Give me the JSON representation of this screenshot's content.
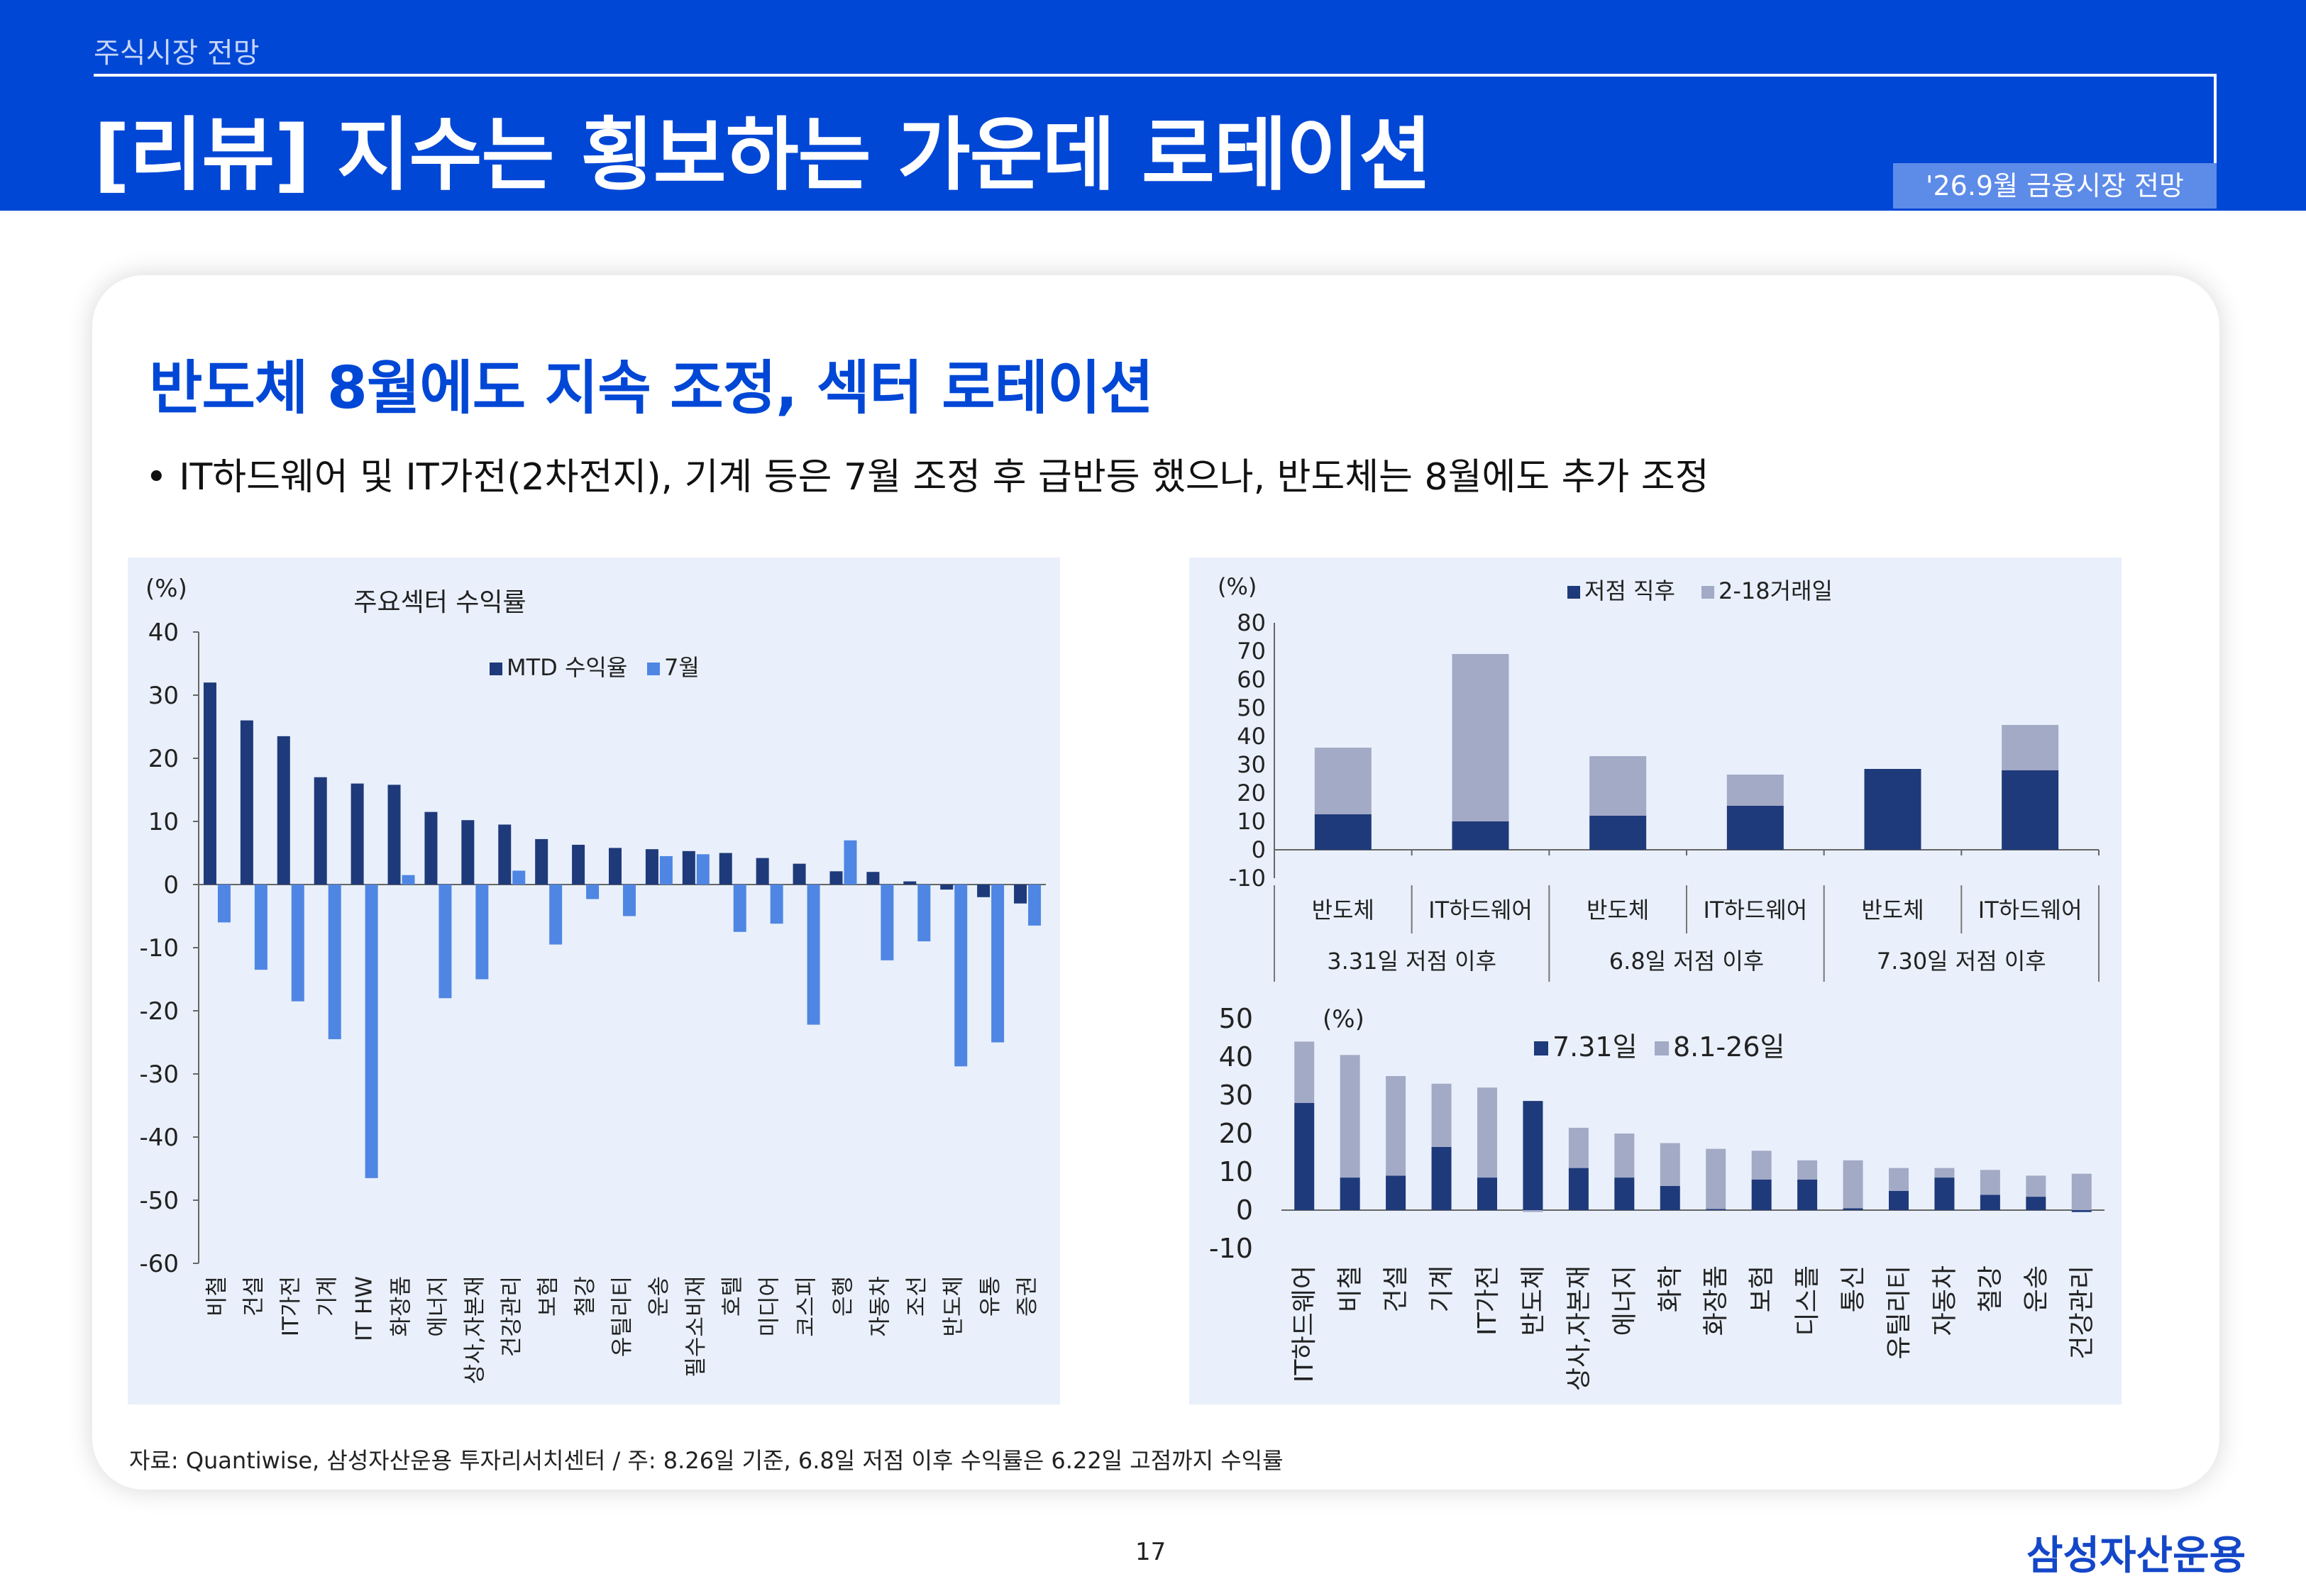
{
  "header": {
    "section": "주식시장 전망",
    "title": "[리뷰] 지수는 횡보하는 가운데 로테이션",
    "issue": "'26.9월 금융시장 전망"
  },
  "content": {
    "subtitle": "반도체 8월에도 지속 조정, 섹터 로테이션",
    "bullet": "• IT하드웨어 및 IT가전(2차전지), 기계 등은 7월 조정 후 급반등 했으나, 반도체는 8월에도 추가 조정"
  },
  "footer": {
    "source": "자료: Quantiwise, 삼성자산운용 투자리서치센터 / 주: 8.26일 기준, 6.8일 저점 이후 수익률은 6.22일 고점까지 수익률",
    "page": "17",
    "logo": "삼성자산운용"
  },
  "colors": {
    "brand": "#0047d6",
    "dark_series": "#1f3a7a",
    "light_series": "#4f86e3",
    "grey_series": "#a3aac6"
  },
  "chart_data": [
    {
      "type": "bar",
      "title": "주요섹터 수익률",
      "unit_label": "(%)",
      "categories": [
        "비철",
        "건설",
        "IT가전",
        "기계",
        "IT HW",
        "화장품",
        "에너지",
        "상사,자본재",
        "건강관리",
        "보험",
        "철강",
        "유틸리티",
        "운송",
        "필수소비재",
        "호텔",
        "미디어",
        "코스피",
        "은행",
        "자동차",
        "조선",
        "반도체",
        "유통",
        "증권"
      ],
      "series": [
        {
          "name": "MTD 수익율",
          "values": [
            32,
            26,
            23.5,
            17,
            16,
            15.8,
            11.5,
            10.2,
            9.5,
            7.2,
            6.3,
            5.8,
            5.6,
            5.3,
            5,
            4.2,
            3.3,
            2.1,
            2,
            0.5,
            -0.8,
            -2,
            -3
          ]
        },
        {
          "name": "7월",
          "values": [
            -6,
            -13.5,
            -18.5,
            -24.5,
            -46.5,
            1.5,
            -18,
            -15,
            2.2,
            -9.5,
            -2.3,
            -5,
            4.5,
            4.8,
            -7.5,
            -6.2,
            -22.2,
            7,
            -12,
            -9,
            -28.8,
            -25,
            -6.5
          ]
        }
      ],
      "ylim": [
        -60,
        40
      ],
      "yticks": [
        40,
        30,
        20,
        10,
        0,
        -10,
        -20,
        -30,
        -40,
        -50,
        -60
      ],
      "legend": "top-center"
    },
    {
      "type": "bar",
      "stacked": true,
      "unit_label": "(%)",
      "categories": [
        "반도체",
        "IT하드웨어",
        "반도체",
        "IT하드웨어",
        "반도체",
        "IT하드웨어"
      ],
      "groups": [
        "3.31일 저점 이후",
        "6.8일 저점 이후",
        "7.30일 저점 이후"
      ],
      "series": [
        {
          "name": "저점 직후",
          "values": [
            12.5,
            10,
            12,
            15.5,
            28.5,
            28
          ]
        },
        {
          "name": "2-18거래일",
          "values": [
            23.5,
            59,
            21,
            11,
            0,
            16
          ]
        }
      ],
      "ylim": [
        -10,
        80
      ],
      "yticks": [
        80,
        70,
        60,
        50,
        40,
        30,
        20,
        10,
        0,
        -10
      ],
      "legend": "top-center"
    },
    {
      "type": "bar",
      "stacked": true,
      "unit_label": "(%)",
      "categories": [
        "IT하드웨어",
        "비철",
        "건설",
        "기계",
        "IT가전",
        "반도체",
        "상사,자본재",
        "에너지",
        "화학",
        "화장품",
        "보험",
        "디스플",
        "통신",
        "유틸리티",
        "자동차",
        "철강",
        "운송",
        "건강관리"
      ],
      "series": [
        {
          "name": "7.31일",
          "values": [
            28,
            8.5,
            9,
            16.5,
            8.5,
            28.5,
            11,
            8.5,
            6.3,
            0.3,
            8,
            8,
            0.5,
            5,
            8.5,
            4,
            3.5,
            -0.5
          ]
        },
        {
          "name": "8.1-26일",
          "values": [
            16,
            32,
            26,
            16.5,
            23.5,
            -0.5,
            10.5,
            11.5,
            11.2,
            15.7,
            7.5,
            5,
            12.5,
            6,
            2.5,
            6.5,
            5.5,
            9.5
          ]
        }
      ],
      "ylim": [
        -10,
        50
      ],
      "yticks": [
        50,
        40,
        30,
        20,
        10,
        0,
        -10
      ],
      "legend": "top-center"
    }
  ]
}
